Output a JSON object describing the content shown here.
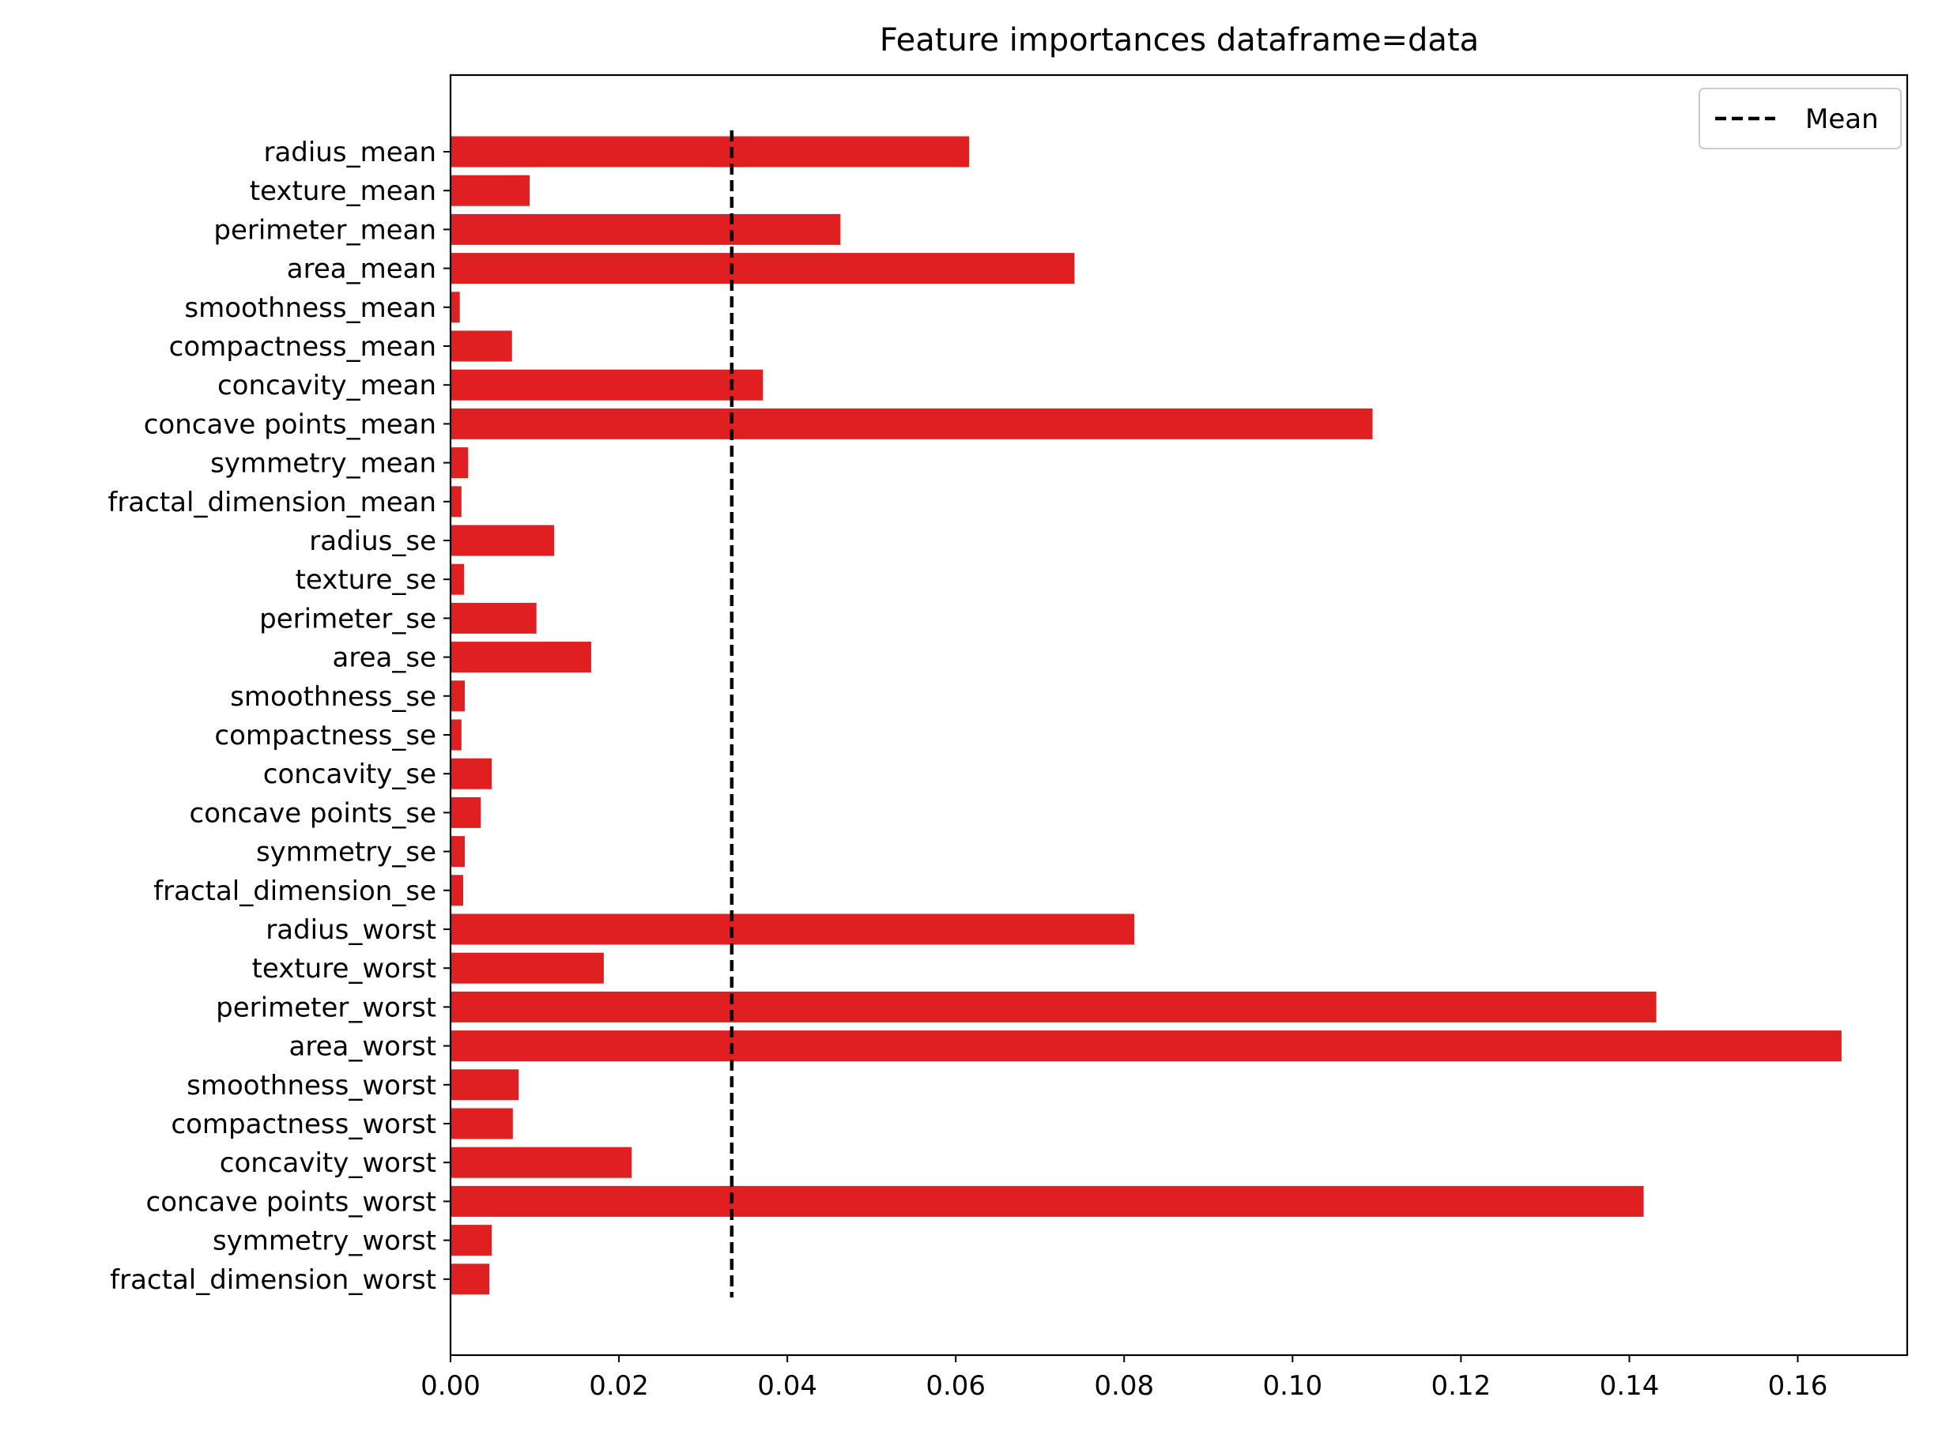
{
  "chart_data": {
    "type": "bar",
    "orientation": "horizontal",
    "title": "Feature importances dataframe=data",
    "xlabel": "",
    "ylabel": "",
    "bar_color": "#e02020",
    "mean_line_color": "#000000",
    "xlim": [
      0,
      0.173
    ],
    "xticks": [
      0.0,
      0.02,
      0.04,
      0.06,
      0.08,
      0.1,
      0.12,
      0.14,
      0.16
    ],
    "xtick_labels": [
      "0.00",
      "0.02",
      "0.04",
      "0.06",
      "0.08",
      "0.10",
      "0.12",
      "0.14",
      "0.16"
    ],
    "grid": false,
    "legend": {
      "placement": "top-right",
      "entries": [
        "Mean"
      ]
    },
    "mean": 0.0334,
    "categories": [
      "radius_mean",
      "texture_mean",
      "perimeter_mean",
      "area_mean",
      "smoothness_mean",
      "compactness_mean",
      "concavity_mean",
      "concave points_mean",
      "symmetry_mean",
      "fractal_dimension_mean",
      "radius_se",
      "texture_se",
      "perimeter_se",
      "area_se",
      "smoothness_se",
      "compactness_se",
      "concavity_se",
      "concave points_se",
      "symmetry_se",
      "fractal_dimension_se",
      "radius_worst",
      "texture_worst",
      "perimeter_worst",
      "area_worst",
      "smoothness_worst",
      "compactness_worst",
      "concavity_worst",
      "concave points_worst",
      "symmetry_worst",
      "fractal_dimension_worst"
    ],
    "values": [
      0.0616,
      0.0094,
      0.0463,
      0.0741,
      0.0011,
      0.0073,
      0.0371,
      0.1095,
      0.0021,
      0.0013,
      0.0123,
      0.0016,
      0.0102,
      0.0167,
      0.0017,
      0.0013,
      0.0049,
      0.0036,
      0.0017,
      0.0015,
      0.0812,
      0.0182,
      0.1432,
      0.1652,
      0.0081,
      0.0074,
      0.0215,
      0.1417,
      0.0049,
      0.0046
    ]
  }
}
